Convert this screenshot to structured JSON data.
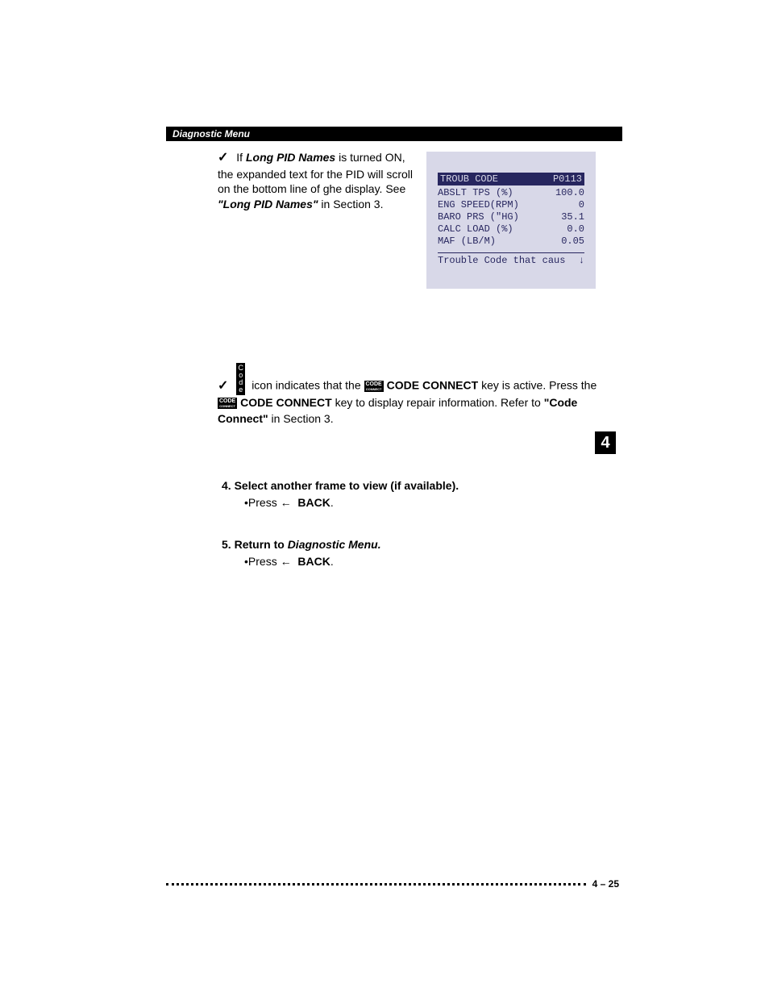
{
  "header": {
    "title": "Diagnostic Menu"
  },
  "block1": {
    "text_prefix": "If ",
    "long_pid": "Long PID Names",
    "text_mid": " is turned ON, the expanded text for the PID will scroll on the bottom line of ghe display. See ",
    "ref": "\"Long PID Names\"",
    "text_end": " in Section 3."
  },
  "screen": {
    "title_left": "TROUB CODE",
    "title_right": "P0113",
    "rows": [
      {
        "label": "ABSLT TPS (%)",
        "value": "100.0"
      },
      {
        "label": "ENG SPEED(RPM)",
        "value": "0"
      },
      {
        "label": "BARO PRS (\"HG)",
        "value": "35.1"
      },
      {
        "label": "CALC LOAD (%)",
        "value": "0.0"
      },
      {
        "label": "MAF (LB/M)",
        "value": "0.05"
      }
    ],
    "footer": "Trouble Code that caus",
    "arrow": "↓"
  },
  "block2": {
    "part1": " icon indicates that the ",
    "code_icon1": "CODE",
    "cc1": "CODE CONNECT",
    "part2": " key is active. Press the ",
    "code_icon2": "CODE",
    "cc2": "CODE CONNECT",
    "part3": " key to display repair information. Refer to ",
    "ref": "\"Code Connect\"",
    "part4": " in Section 3."
  },
  "code_vertical": [
    "C",
    "o",
    "d",
    "e"
  ],
  "section_tab": "4",
  "step4": {
    "num": "4.",
    "title": "Select another frame to view (if available).",
    "sub_prefix": "•Press  ",
    "arrow": "←",
    "sub_label": "BACK",
    "sub_suffix": "."
  },
  "step5": {
    "num": "5.",
    "title_prefix": "Return to ",
    "title_italic": "Diagnostic Menu.",
    "sub_prefix": "•Press  ",
    "arrow": "←",
    "sub_label": "BACK",
    "sub_suffix": "."
  },
  "footer": {
    "page": "4 – 25"
  }
}
